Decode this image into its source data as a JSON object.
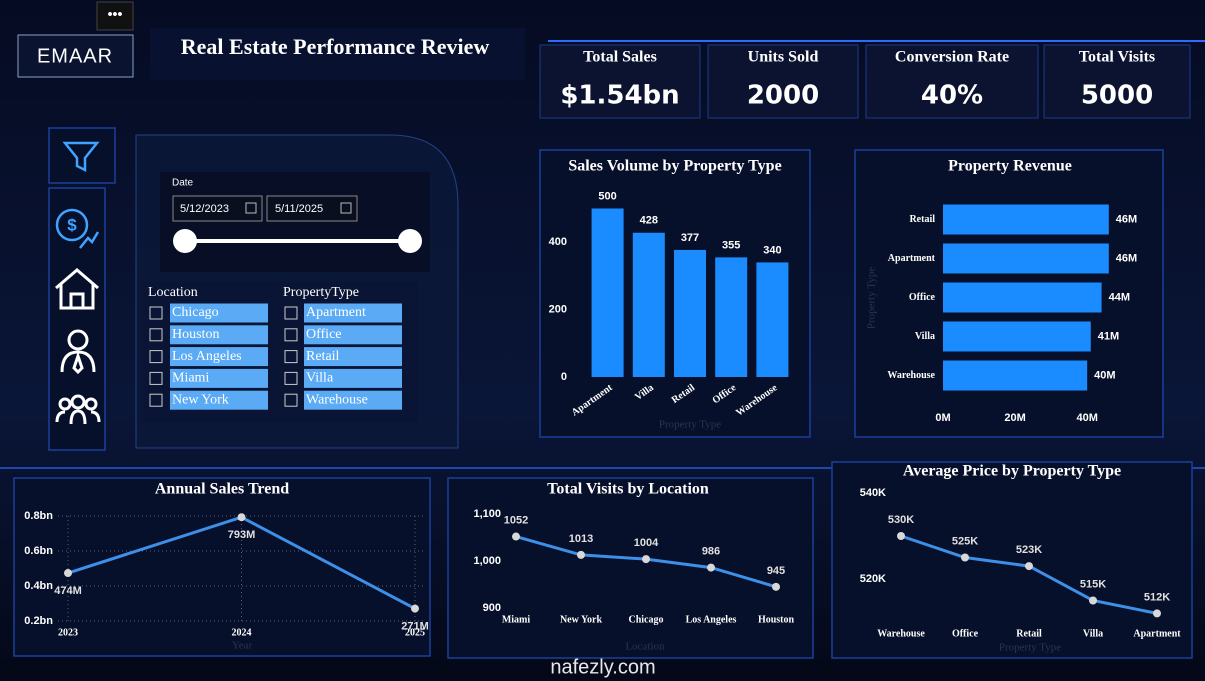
{
  "header": {
    "brand": "EMAAR",
    "title": "Real Estate Performance Review"
  },
  "kpis": [
    {
      "label": "Total Sales",
      "value": "$1.54bn"
    },
    {
      "label": "Units Sold",
      "value": "2000"
    },
    {
      "label": "Conversion Rate",
      "value": "40%"
    },
    {
      "label": "Total Visits",
      "value": "5000"
    }
  ],
  "filters": {
    "date": {
      "label": "Date",
      "start": "5/12/2023",
      "end": "5/11/2025"
    },
    "location": {
      "label": "Location",
      "items": [
        "Chicago",
        "Houston",
        "Los Angeles",
        "Miami",
        "New York"
      ]
    },
    "property_type": {
      "label": "PropertyType",
      "items": [
        "Apartment",
        "Office",
        "Retail",
        "Villa",
        "Warehouse"
      ]
    }
  },
  "watermark": "nafezly.com",
  "chart_data": [
    {
      "type": "bar",
      "title": "Sales Volume by Property Type",
      "x_label": "Property Type",
      "categories": [
        "Apartment",
        "Villa",
        "Retail",
        "Office",
        "Warehouse"
      ],
      "values": [
        500,
        428,
        377,
        355,
        340
      ],
      "color": "#1a8cff",
      "ylim": [
        0,
        540
      ],
      "yticks": [
        0,
        200,
        400
      ],
      "grid": false
    },
    {
      "type": "barh",
      "title": "Property Revenue",
      "y_label": "Property Type",
      "categories": [
        "Retail",
        "Apartment",
        "Office",
        "Villa",
        "Warehouse"
      ],
      "values": [
        46,
        46,
        44,
        41,
        40
      ],
      "value_labels": [
        "46M",
        "46M",
        "44M",
        "41M",
        "40M"
      ],
      "color": "#1a8cff",
      "xlim": [
        0,
        48
      ],
      "xticks": [
        {
          "value": 0,
          "label": "0M"
        },
        {
          "value": 20,
          "label": "20M"
        },
        {
          "value": 40,
          "label": "40M"
        }
      ],
      "grid": false
    },
    {
      "type": "line",
      "title": "Annual Sales Trend",
      "x_label": "Year",
      "categories": [
        "2023",
        "2024",
        "2025"
      ],
      "values": [
        0.474,
        0.793,
        0.271
      ],
      "value_labels": [
        "474M",
        "793M",
        "271M"
      ],
      "color": "#3d8fe8",
      "ylim": [
        0.2,
        0.8
      ],
      "yticks": [
        {
          "value": 0.2,
          "label": "0.2bn"
        },
        {
          "value": 0.4,
          "label": "0.4bn"
        },
        {
          "value": 0.6,
          "label": "0.6bn"
        },
        {
          "value": 0.8,
          "label": "0.8bn"
        }
      ],
      "grid": true
    },
    {
      "type": "line",
      "title": "Total Visits by Location",
      "x_label": "Location",
      "categories": [
        "Miami",
        "New York",
        "Chicago",
        "Los Angeles",
        "Houston"
      ],
      "values": [
        1052,
        1013,
        1004,
        986,
        945
      ],
      "color": "#3d8fe8",
      "ylim": [
        900,
        1100
      ],
      "yticks": [
        900,
        {
          "value": 1000,
          "label": "1,000"
        },
        {
          "value": 1100,
          "label": "1,100"
        }
      ],
      "grid": false
    },
    {
      "type": "line",
      "title": "Average Price by Property Type",
      "x_label": "Property Type",
      "categories": [
        "Warehouse",
        "Office",
        "Retail",
        "Villa",
        "Apartment"
      ],
      "values": [
        530000,
        525000,
        523000,
        515000,
        512000
      ],
      "value_labels": [
        "530K",
        "525K",
        "523K",
        "515K",
        "512K"
      ],
      "color": "#3d8fe8",
      "ylim": [
        510000,
        540000
      ],
      "yticks": [
        {
          "value": 520000,
          "label": "520K"
        },
        {
          "value": 540000,
          "label": "540K"
        }
      ],
      "grid": false
    }
  ]
}
